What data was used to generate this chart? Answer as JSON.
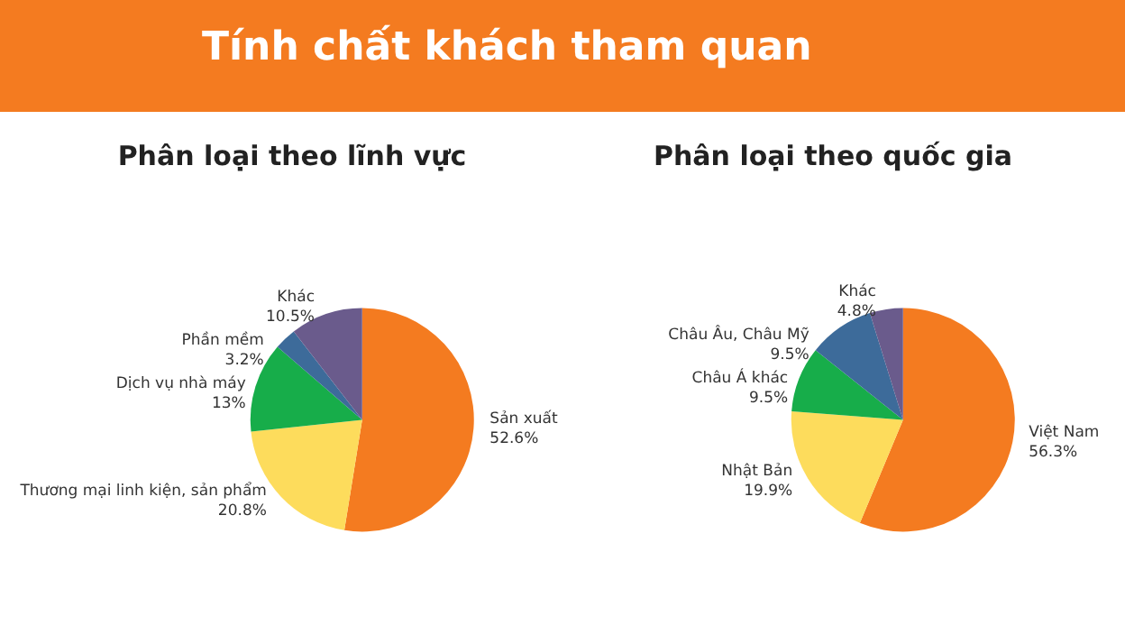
{
  "chart_data": [
    {
      "type": "pie",
      "title": "Phân loại theo lĩnh vực",
      "annotations": [
        "Tính chất khách tham quan"
      ],
      "categories": [
        "Sản xuất",
        "Thương mại linh kiện, sản phẩm",
        "Dịch vụ nhà máy",
        "Phần mềm",
        "Khác"
      ],
      "values": [
        52.6,
        20.8,
        13,
        3.2,
        10.5
      ],
      "value_labels": [
        "52.6%",
        "20.8%",
        "13%",
        "3.2%",
        "10.5%"
      ],
      "colors": [
        "#f47b20",
        "#fddc5c",
        "#17ad4a",
        "#3d6b9a",
        "#6a5b8c"
      ],
      "legend": false
    },
    {
      "type": "pie",
      "title": "Phân loại theo quốc gia",
      "categories": [
        "Việt Nam",
        "Nhật Bản",
        "Châu Á khác",
        "Châu Âu, Châu Mỹ",
        "Khác"
      ],
      "values": [
        56.3,
        19.9,
        9.5,
        9.5,
        4.8
      ],
      "value_labels": [
        "56.3%",
        "19.9%",
        "9.5%",
        "9.5%",
        "4.8%"
      ],
      "colors": [
        "#f47b20",
        "#fddc5c",
        "#17ad4a",
        "#3d6b9a",
        "#6a5b8c"
      ],
      "legend": false
    }
  ]
}
